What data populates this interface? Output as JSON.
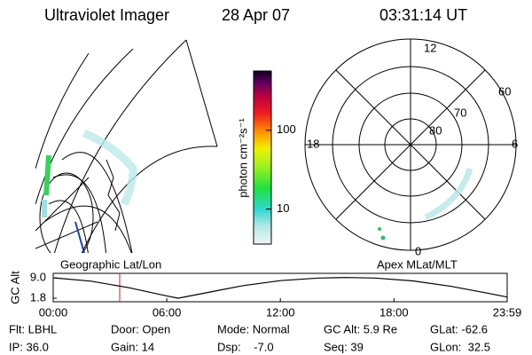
{
  "header": {
    "title": "Ultraviolet Imager",
    "date": "28 Apr 07",
    "time": "03:31:14 UT"
  },
  "colorbar": {
    "label": "photon cm⁻²s⁻¹",
    "log": true,
    "lim": [
      3.6,
      565
    ],
    "ticks": [
      10,
      100
    ]
  },
  "polar": {
    "mlt_labels": [
      "12",
      "18",
      "6",
      "0"
    ],
    "lat_labels": [
      "60",
      "70",
      "80"
    ]
  },
  "panel_labels": {
    "left": "Geographic Lat/Lon",
    "right": "Apex MLat/MLT"
  },
  "chart_data": {
    "type": "line",
    "ylabel": "GC Alt",
    "x": [
      0,
      2,
      4,
      6,
      6.6,
      8,
      10,
      12,
      14,
      15.5,
      17,
      19,
      21,
      23,
      23.98
    ],
    "series": [
      {
        "name": "GC Alt",
        "color": "#000000",
        "values": [
          9.0,
          7.8,
          5.5,
          2.6,
          1.8,
          3.6,
          6.2,
          8.0,
          8.9,
          9.1,
          8.9,
          7.9,
          6.0,
          3.5,
          2.2
        ]
      }
    ],
    "xlim": [
      0,
      23.98
    ],
    "xticks": [
      {
        "value": 0,
        "label": "00:00"
      },
      {
        "value": 6,
        "label": "06:00"
      },
      {
        "value": 12,
        "label": "12:00"
      },
      {
        "value": 18,
        "label": "18:00"
      },
      {
        "value": 23.98,
        "label": "23:59"
      }
    ],
    "ylim": [
      1.8,
      9.0
    ],
    "yticks": [
      {
        "value": 9.0,
        "label": "9.0"
      },
      {
        "value": 1.8,
        "label": "1.8"
      }
    ]
  },
  "footer": {
    "rows": [
      [
        "Flt: LBHL",
        "Door: Open",
        "Mode: Normal",
        "GC Alt: 5.9 Re",
        "GLat: -62.6"
      ],
      [
        "IP: 36.0",
        "Gain: 14",
        "Dsp:    -7.0",
        "Seq: 39",
        "GLon:  32.5"
      ]
    ]
  }
}
